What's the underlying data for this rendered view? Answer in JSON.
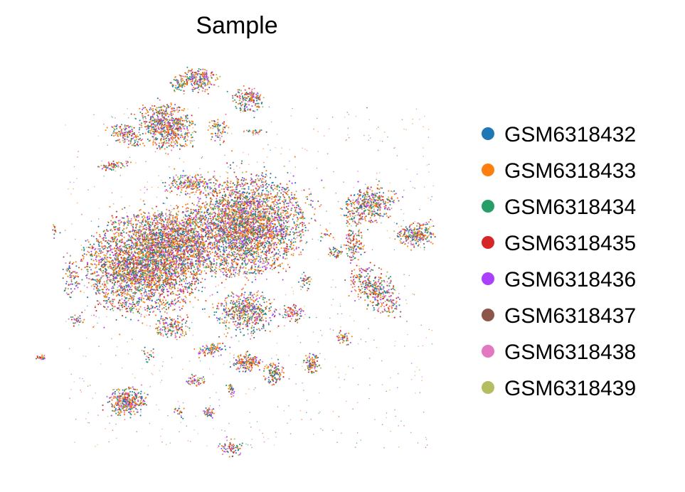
{
  "chart_data": {
    "type": "scatter",
    "title": "Sample",
    "xlabel": "",
    "ylabel": "",
    "axes_visible": false,
    "grid": false,
    "legend_position": "right",
    "series": [
      {
        "name": "GSM6318432",
        "color": "#1f77b4"
      },
      {
        "name": "GSM6318433",
        "color": "#ff7f0e"
      },
      {
        "name": "GSM6318434",
        "color": "#279e68"
      },
      {
        "name": "GSM6318435",
        "color": "#d62728"
      },
      {
        "name": "GSM6318436",
        "color": "#aa40fc"
      },
      {
        "name": "GSM6318437",
        "color": "#8c564b"
      },
      {
        "name": "GSM6318438",
        "color": "#e377c2"
      },
      {
        "name": "GSM6318439",
        "color": "#b5bd61"
      }
    ]
  }
}
